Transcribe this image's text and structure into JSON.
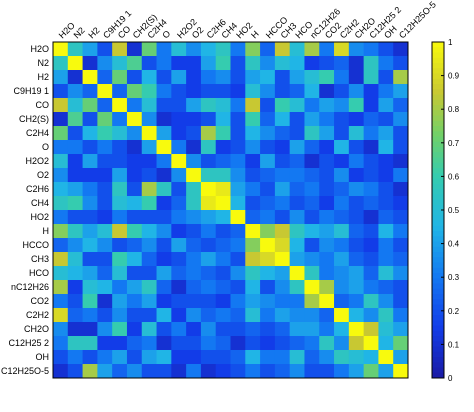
{
  "chart_data": {
    "type": "heatmap",
    "species": [
      "H2O",
      "N2",
      "H2",
      "C9H19 1",
      "CO",
      "CH2(S)",
      "C2H4",
      "O",
      "H2O2",
      "O2",
      "C2H6",
      "CH4",
      "HO2",
      "H",
      "HCCO",
      "CH3",
      "HCO",
      "nC12H26",
      "CO2",
      "C2H2",
      "CH2O",
      "C12H25 2",
      "OH",
      "C12H25O-5"
    ],
    "x_labels": [
      "H2O",
      "N2",
      "H2",
      "C9H19 1",
      "CO",
      "CH2(S)",
      "C2H4",
      "O",
      "H2O2",
      "O2",
      "C2H6",
      "CH4",
      "HO2",
      "H",
      "HCCO",
      "CH3",
      "HCO",
      "nC12H26",
      "CO2",
      "C2H2",
      "CH2O",
      "C12H25 2",
      "OH",
      "C12H25O-5"
    ],
    "y_labels": [
      "H2O",
      "N2",
      "H2",
      "C9H19 1",
      "CO",
      "CH2(S)",
      "C2H4",
      "O",
      "H2O2",
      "O2",
      "C2H6",
      "CH4",
      "HO2",
      "H",
      "HCCO",
      "CH3",
      "HCO",
      "nC12H26",
      "CO2",
      "C2H2",
      "CH2O",
      "C12H25 2",
      "OH",
      "C12H25O-5"
    ],
    "colorbar": {
      "range": [
        0,
        1
      ],
      "ticks": [
        "0",
        "0.1",
        "0.2",
        "0.3",
        "0.4",
        "0.5",
        "0.6",
        "0.7",
        "0.8",
        "0.9",
        "1"
      ]
    },
    "values": [
      [
        1.0,
        0.55,
        0.4,
        0.2,
        0.85,
        0.1,
        0.7,
        0.3,
        0.5,
        0.35,
        0.45,
        0.55,
        0.3,
        0.75,
        0.25,
        0.85,
        0.5,
        0.8,
        0.3,
        0.9,
        0.35,
        0.3,
        0.2,
        0.1
      ],
      [
        0.55,
        1.0,
        0.1,
        0.35,
        0.5,
        0.65,
        0.2,
        0.3,
        0.15,
        0.15,
        0.4,
        0.6,
        0.2,
        0.55,
        0.35,
        0.5,
        0.45,
        0.15,
        0.2,
        0.25,
        0.1,
        0.55,
        0.3,
        0.2
      ],
      [
        0.4,
        0.1,
        1.0,
        0.25,
        0.7,
        0.2,
        0.45,
        0.2,
        0.4,
        0.15,
        0.3,
        0.35,
        0.2,
        0.4,
        0.45,
        0.2,
        0.4,
        0.5,
        0.6,
        0.3,
        0.1,
        0.55,
        0.2,
        0.8
      ],
      [
        0.2,
        0.35,
        0.25,
        1.0,
        0.25,
        0.7,
        0.6,
        0.3,
        0.2,
        0.15,
        0.2,
        0.2,
        0.15,
        0.5,
        0.35,
        0.2,
        0.25,
        0.45,
        0.1,
        0.2,
        0.35,
        0.15,
        0.3,
        0.4
      ],
      [
        0.85,
        0.5,
        0.7,
        0.25,
        1.0,
        0.3,
        0.5,
        0.2,
        0.2,
        0.4,
        0.55,
        0.5,
        0.3,
        0.85,
        0.2,
        0.6,
        0.5,
        0.3,
        0.4,
        0.35,
        0.6,
        0.15,
        0.4,
        0.25
      ],
      [
        0.1,
        0.65,
        0.2,
        0.7,
        0.3,
        1.0,
        0.35,
        0.1,
        0.15,
        0.15,
        0.2,
        0.45,
        0.2,
        0.6,
        0.25,
        0.45,
        0.2,
        0.4,
        0.3,
        0.2,
        0.15,
        0.25,
        0.2,
        0.35
      ],
      [
        0.7,
        0.2,
        0.45,
        0.6,
        0.5,
        0.35,
        1.0,
        0.4,
        0.15,
        0.2,
        0.8,
        0.6,
        0.2,
        0.45,
        0.35,
        0.25,
        0.2,
        0.55,
        0.4,
        0.2,
        0.5,
        0.3,
        0.4,
        0.2
      ],
      [
        0.3,
        0.3,
        0.2,
        0.3,
        0.2,
        0.1,
        0.4,
        1.0,
        0.3,
        0.1,
        0.55,
        0.15,
        0.2,
        0.35,
        0.2,
        0.15,
        0.4,
        0.25,
        0.15,
        0.45,
        0.2,
        0.1,
        0.45,
        0.2
      ],
      [
        0.5,
        0.15,
        0.4,
        0.2,
        0.2,
        0.15,
        0.15,
        0.3,
        1.0,
        0.35,
        0.2,
        0.25,
        0.3,
        0.15,
        0.4,
        0.2,
        0.25,
        0.1,
        0.2,
        0.15,
        0.3,
        0.2,
        0.15,
        0.1
      ],
      [
        0.35,
        0.15,
        0.15,
        0.15,
        0.4,
        0.15,
        0.2,
        0.1,
        0.35,
        1.0,
        0.55,
        0.55,
        0.35,
        0.2,
        0.25,
        0.3,
        0.3,
        0.25,
        0.2,
        0.35,
        0.15,
        0.2,
        0.15,
        0.3
      ],
      [
        0.45,
        0.4,
        0.3,
        0.2,
        0.55,
        0.2,
        0.8,
        0.55,
        0.2,
        0.55,
        1.0,
        0.95,
        0.4,
        0.3,
        0.2,
        0.4,
        0.25,
        0.3,
        0.2,
        0.25,
        0.35,
        0.3,
        0.2,
        0.1
      ],
      [
        0.55,
        0.6,
        0.35,
        0.2,
        0.5,
        0.45,
        0.6,
        0.15,
        0.25,
        0.55,
        0.95,
        1.0,
        0.45,
        0.2,
        0.25,
        0.3,
        0.2,
        0.25,
        0.15,
        0.3,
        0.2,
        0.25,
        0.2,
        0.15
      ],
      [
        0.3,
        0.2,
        0.2,
        0.15,
        0.3,
        0.2,
        0.2,
        0.2,
        0.3,
        0.35,
        0.4,
        0.45,
        1.0,
        0.25,
        0.3,
        0.2,
        0.35,
        0.2,
        0.3,
        0.25,
        0.2,
        0.1,
        0.25,
        0.2
      ],
      [
        0.75,
        0.55,
        0.4,
        0.5,
        0.85,
        0.6,
        0.45,
        0.35,
        0.15,
        0.2,
        0.3,
        0.2,
        0.25,
        1.0,
        0.75,
        0.85,
        0.55,
        0.45,
        0.4,
        0.5,
        0.25,
        0.2,
        0.45,
        0.3
      ],
      [
        0.25,
        0.35,
        0.45,
        0.35,
        0.2,
        0.25,
        0.35,
        0.2,
        0.4,
        0.25,
        0.2,
        0.25,
        0.3,
        0.75,
        1.0,
        0.9,
        0.45,
        0.2,
        0.35,
        0.3,
        0.2,
        0.15,
        0.3,
        0.2
      ],
      [
        0.85,
        0.5,
        0.2,
        0.2,
        0.6,
        0.45,
        0.25,
        0.15,
        0.2,
        0.3,
        0.4,
        0.3,
        0.2,
        0.85,
        0.9,
        1.0,
        0.4,
        0.35,
        0.3,
        0.4,
        0.25,
        0.2,
        0.3,
        0.25
      ],
      [
        0.5,
        0.45,
        0.4,
        0.25,
        0.5,
        0.2,
        0.2,
        0.4,
        0.25,
        0.3,
        0.25,
        0.2,
        0.35,
        0.55,
        0.45,
        0.4,
        1.0,
        0.55,
        0.3,
        0.35,
        0.4,
        0.25,
        0.5,
        0.35
      ],
      [
        0.8,
        0.15,
        0.5,
        0.45,
        0.3,
        0.4,
        0.55,
        0.25,
        0.1,
        0.25,
        0.3,
        0.25,
        0.2,
        0.45,
        0.2,
        0.35,
        0.55,
        1.0,
        0.8,
        0.35,
        0.4,
        0.3,
        0.25,
        0.2
      ],
      [
        0.3,
        0.2,
        0.6,
        0.1,
        0.4,
        0.3,
        0.4,
        0.15,
        0.2,
        0.2,
        0.2,
        0.15,
        0.3,
        0.4,
        0.35,
        0.3,
        0.3,
        0.8,
        1.0,
        0.25,
        0.3,
        0.55,
        0.35,
        0.2
      ],
      [
        0.9,
        0.25,
        0.3,
        0.2,
        0.35,
        0.2,
        0.2,
        0.45,
        0.15,
        0.35,
        0.25,
        0.3,
        0.25,
        0.5,
        0.3,
        0.4,
        0.35,
        0.35,
        0.25,
        1.0,
        0.45,
        0.35,
        0.55,
        0.3
      ],
      [
        0.35,
        0.1,
        0.1,
        0.35,
        0.6,
        0.15,
        0.5,
        0.2,
        0.3,
        0.15,
        0.35,
        0.2,
        0.2,
        0.25,
        0.2,
        0.25,
        0.4,
        0.4,
        0.3,
        0.45,
        1.0,
        0.85,
        0.5,
        0.4
      ],
      [
        0.3,
        0.55,
        0.55,
        0.15,
        0.15,
        0.25,
        0.3,
        0.1,
        0.2,
        0.2,
        0.3,
        0.25,
        0.1,
        0.2,
        0.15,
        0.2,
        0.25,
        0.3,
        0.55,
        0.35,
        0.85,
        1.0,
        0.45,
        0.7
      ],
      [
        0.2,
        0.3,
        0.2,
        0.3,
        0.4,
        0.2,
        0.4,
        0.45,
        0.15,
        0.15,
        0.2,
        0.2,
        0.25,
        0.45,
        0.3,
        0.3,
        0.5,
        0.25,
        0.35,
        0.55,
        0.5,
        0.45,
        1.0,
        0.4
      ],
      [
        0.1,
        0.2,
        0.8,
        0.4,
        0.25,
        0.35,
        0.2,
        0.2,
        0.1,
        0.3,
        0.1,
        0.15,
        0.2,
        0.3,
        0.2,
        0.25,
        0.35,
        0.2,
        0.2,
        0.3,
        0.4,
        0.7,
        0.4,
        1.0
      ]
    ]
  }
}
